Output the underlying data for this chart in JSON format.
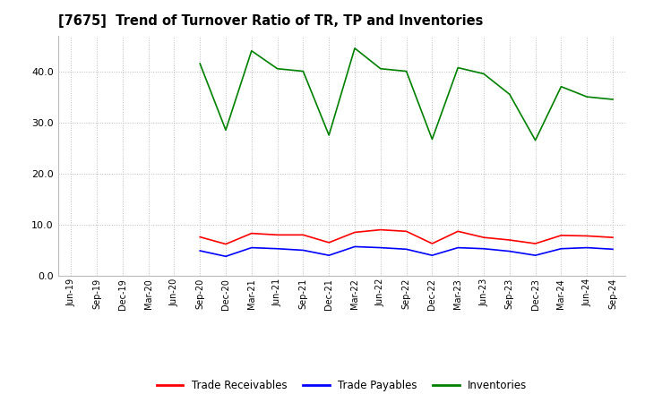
{
  "title": "[7675]  Trend of Turnover Ratio of TR, TP and Inventories",
  "x_labels": [
    "Jun-19",
    "Sep-19",
    "Dec-19",
    "Mar-20",
    "Jun-20",
    "Sep-20",
    "Dec-20",
    "Mar-21",
    "Jun-21",
    "Sep-21",
    "Dec-21",
    "Mar-22",
    "Jun-22",
    "Sep-22",
    "Dec-22",
    "Mar-23",
    "Jun-23",
    "Sep-23",
    "Dec-23",
    "Mar-24",
    "Jun-24",
    "Sep-24"
  ],
  "trade_receivables": [
    null,
    null,
    null,
    null,
    null,
    7.6,
    6.2,
    8.3,
    8.0,
    8.0,
    6.5,
    8.5,
    9.0,
    8.7,
    6.3,
    8.7,
    7.5,
    7.0,
    6.3,
    7.9,
    7.8,
    7.5
  ],
  "trade_payables": [
    null,
    null,
    null,
    null,
    null,
    4.9,
    3.8,
    5.5,
    5.3,
    5.0,
    4.0,
    5.7,
    5.5,
    5.2,
    4.0,
    5.5,
    5.3,
    4.8,
    4.0,
    5.3,
    5.5,
    5.2
  ],
  "inventories": [
    null,
    null,
    null,
    null,
    null,
    41.5,
    28.5,
    44.0,
    40.5,
    40.0,
    27.5,
    44.5,
    40.5,
    40.0,
    26.7,
    40.7,
    39.5,
    35.5,
    26.5,
    37.0,
    35.0,
    34.5
  ],
  "tr_color": "#FF0000",
  "tp_color": "#0000FF",
  "inv_color": "#008000",
  "ylim": [
    0,
    47
  ],
  "yticks": [
    0.0,
    10.0,
    20.0,
    30.0,
    40.0
  ],
  "legend_labels": [
    "Trade Receivables",
    "Trade Payables",
    "Inventories"
  ],
  "background_color": "#FFFFFF",
  "grid_color": "#BBBBBB"
}
